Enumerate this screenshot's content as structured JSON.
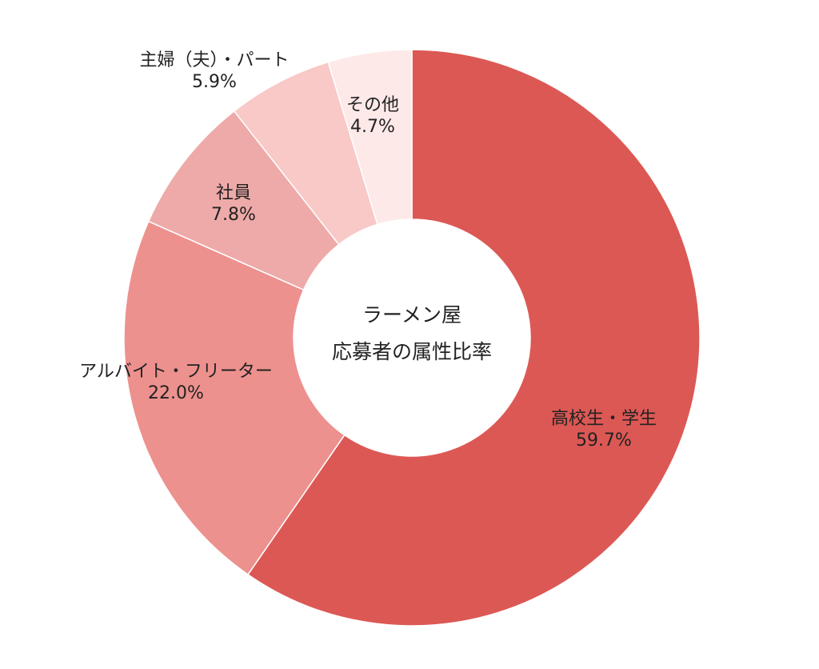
{
  "chart_data": {
    "type": "pie",
    "variant": "donut",
    "title": "ラーメン屋",
    "subtitle": "応募者の属性比率",
    "start": "top",
    "direction": "clockwise",
    "slices": [
      {
        "label": "高校生・学生",
        "value": 59.7,
        "value_label": "59.7%",
        "color": "#dc5854"
      },
      {
        "label": "アルバイト・フリーター",
        "value": 22.0,
        "value_label": "22.0%",
        "color": "#ed918e"
      },
      {
        "label": "社員",
        "value": 7.8,
        "value_label": "7.8%",
        "color": "#eeaaa8"
      },
      {
        "label": "主婦（夫）・パート",
        "value": 5.9,
        "value_label": "5.9%",
        "color": "#f8c9c7"
      },
      {
        "label": "その他",
        "value": 4.7,
        "value_label": "4.7%",
        "color": "#fde9e8"
      }
    ]
  }
}
